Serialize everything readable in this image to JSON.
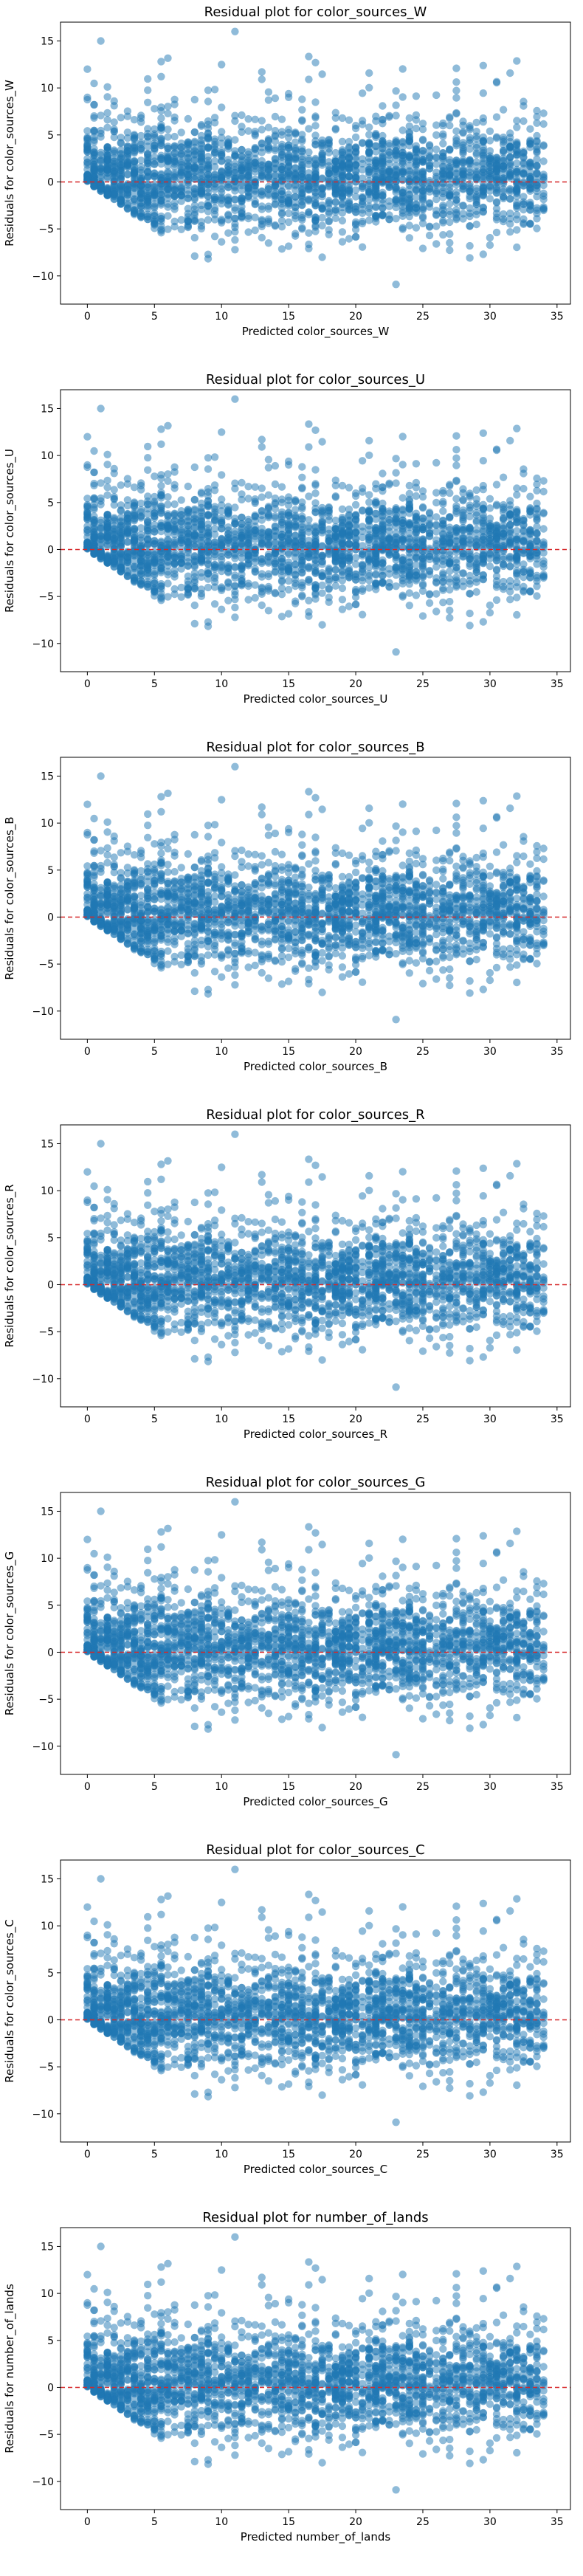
{
  "chart_data": [
    {
      "type": "scatter",
      "title": "Residual plot for color_sources_W",
      "xlabel": "Predicted color_sources_W",
      "ylabel": "Residuals for color_sources_W",
      "xlim": [
        -2,
        36
      ],
      "ylim": [
        -13,
        17
      ],
      "xticks": [
        0,
        5,
        10,
        15,
        20,
        25,
        30,
        35
      ],
      "yticks": [
        -10,
        -5,
        0,
        5,
        10,
        15
      ],
      "reference_line": {
        "y": 0,
        "style": "dashed",
        "color": "#d62728"
      },
      "marker_color": "#1f77b4",
      "marker_alpha": 0.5,
      "grid": false,
      "points_note": "dense fan-shaped cloud; residuals bounded below by -x"
    },
    {
      "type": "scatter",
      "title": "Residual plot for color_sources_U",
      "xlabel": "Predicted color_sources_U",
      "ylabel": "Residuals for color_sources_U",
      "xlim": [
        -2,
        36
      ],
      "ylim": [
        -13,
        17
      ],
      "xticks": [
        0,
        5,
        10,
        15,
        20,
        25,
        30,
        35
      ],
      "yticks": [
        -10,
        -5,
        0,
        5,
        10,
        15
      ],
      "reference_line": {
        "y": 0,
        "style": "dashed",
        "color": "#d62728"
      },
      "marker_color": "#1f77b4",
      "marker_alpha": 0.5,
      "grid": false
    },
    {
      "type": "scatter",
      "title": "Residual plot for color_sources_B",
      "xlabel": "Predicted color_sources_B",
      "ylabel": "Residuals for color_sources_B",
      "xlim": [
        -2,
        36
      ],
      "ylim": [
        -13,
        17
      ],
      "xticks": [
        0,
        5,
        10,
        15,
        20,
        25,
        30,
        35
      ],
      "yticks": [
        -10,
        -5,
        0,
        5,
        10,
        15
      ],
      "reference_line": {
        "y": 0,
        "style": "dashed",
        "color": "#d62728"
      },
      "marker_color": "#1f77b4",
      "marker_alpha": 0.5,
      "grid": false
    },
    {
      "type": "scatter",
      "title": "Residual plot for color_sources_R",
      "xlabel": "Predicted color_sources_R",
      "ylabel": "Residuals for color_sources_R",
      "xlim": [
        -2,
        36
      ],
      "ylim": [
        -13,
        17
      ],
      "xticks": [
        0,
        5,
        10,
        15,
        20,
        25,
        30,
        35
      ],
      "yticks": [
        -10,
        -5,
        0,
        5,
        10,
        15
      ],
      "reference_line": {
        "y": 0,
        "style": "dashed",
        "color": "#d62728"
      },
      "marker_color": "#1f77b4",
      "marker_alpha": 0.5,
      "grid": false
    },
    {
      "type": "scatter",
      "title": "Residual plot for color_sources_G",
      "xlabel": "Predicted color_sources_G",
      "ylabel": "Residuals for color_sources_G",
      "xlim": [
        -2,
        36
      ],
      "ylim": [
        -13,
        17
      ],
      "xticks": [
        0,
        5,
        10,
        15,
        20,
        25,
        30,
        35
      ],
      "yticks": [
        -10,
        -5,
        0,
        5,
        10,
        15
      ],
      "reference_line": {
        "y": 0,
        "style": "dashed",
        "color": "#d62728"
      },
      "marker_color": "#1f77b4",
      "marker_alpha": 0.5,
      "grid": false
    },
    {
      "type": "scatter",
      "title": "Residual plot for color_sources_C",
      "xlabel": "Predicted color_sources_C",
      "ylabel": "Residuals for color_sources_C",
      "xlim": [
        -2,
        36
      ],
      "ylim": [
        -13,
        17
      ],
      "xticks": [
        0,
        5,
        10,
        15,
        20,
        25,
        30,
        35
      ],
      "yticks": [
        -10,
        -5,
        0,
        5,
        10,
        15
      ],
      "reference_line": {
        "y": 0,
        "style": "dashed",
        "color": "#d62728"
      },
      "marker_color": "#1f77b4",
      "marker_alpha": 0.5,
      "grid": false
    },
    {
      "type": "scatter",
      "title": "Residual plot for number_of_lands",
      "xlabel": "Predicted number_of_lands",
      "ylabel": "Residuals for number_of_lands",
      "xlim": [
        -2,
        36
      ],
      "ylim": [
        -13,
        17
      ],
      "xticks": [
        0,
        5,
        10,
        15,
        20,
        25,
        30,
        35
      ],
      "yticks": [
        -10,
        -5,
        0,
        5,
        10,
        15
      ],
      "reference_line": {
        "y": 0,
        "style": "dashed",
        "color": "#d62728"
      },
      "marker_color": "#1f77b4",
      "marker_alpha": 0.5,
      "grid": false
    }
  ]
}
